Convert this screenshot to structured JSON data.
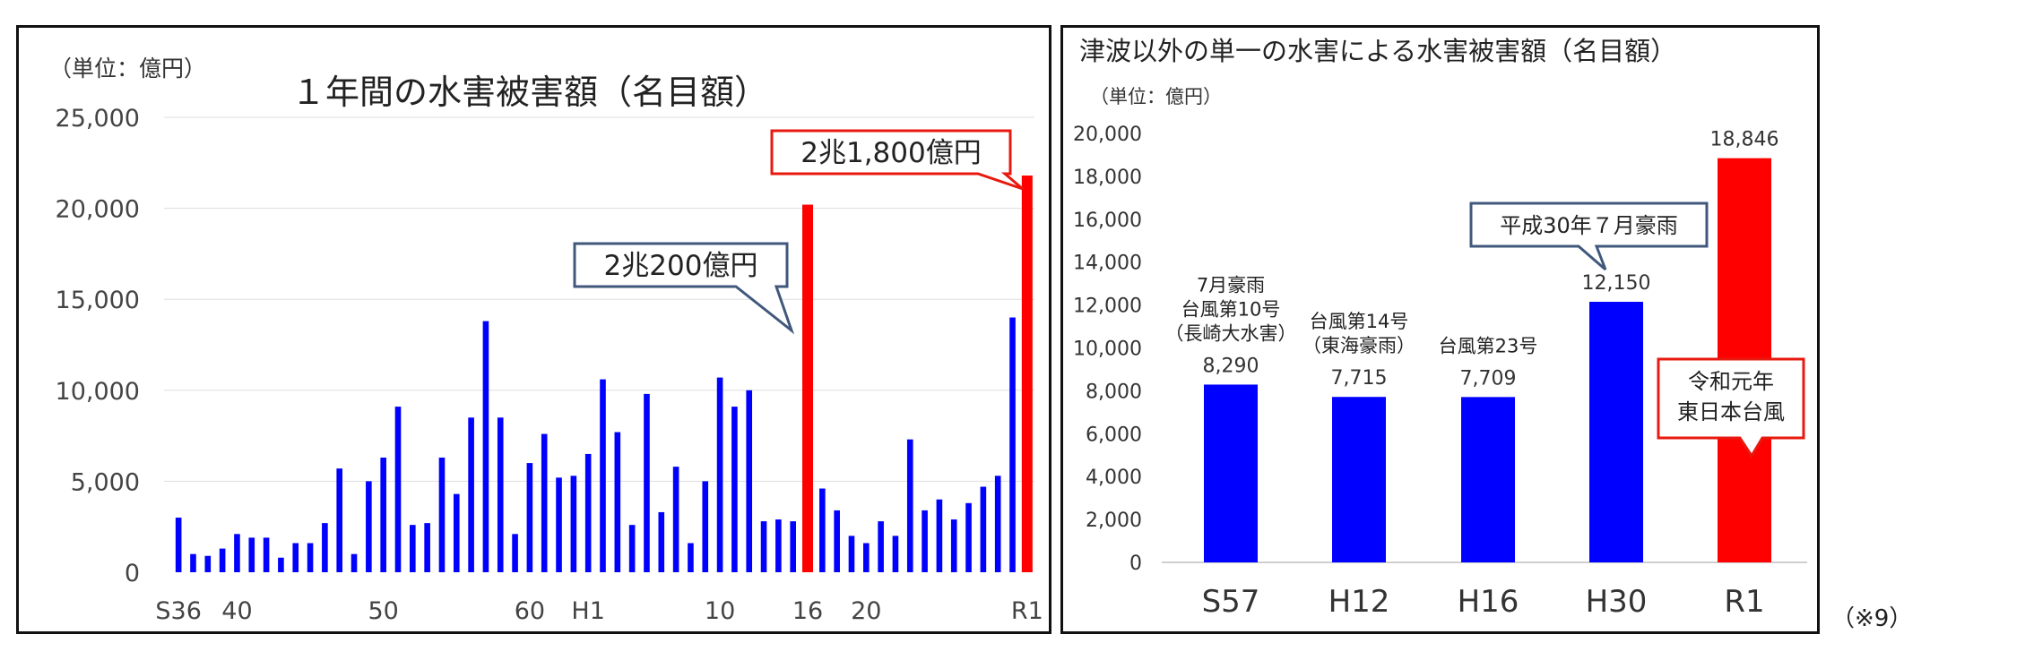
{
  "note": "（※9）",
  "chart_data": [
    {
      "type": "bar",
      "title": "１年間の水害被害額（名目額）",
      "unit_label": "（単位：億円）",
      "ylim": [
        0,
        25000
      ],
      "yticks": [
        "0",
        "5,000",
        "10,000",
        "15,000",
        "20,000",
        "25,000"
      ],
      "grid": true,
      "x_tick_labels": [
        "S36",
        "40",
        "50",
        "60",
        "H1",
        "10",
        "16",
        "20",
        "R1"
      ],
      "categories": [
        "S36",
        "S37",
        "S38",
        "S39",
        "S40",
        "S41",
        "S42",
        "S43",
        "S44",
        "S45",
        "S46",
        "S47",
        "S48",
        "S49",
        "S50",
        "S51",
        "S52",
        "S53",
        "S54",
        "S55",
        "S56",
        "S57",
        "S58",
        "S59",
        "S60",
        "S61",
        "S62",
        "S63",
        "H1",
        "H2",
        "H3",
        "H4",
        "H5",
        "H6",
        "H7",
        "H8",
        "H9",
        "H10",
        "H11",
        "H12",
        "H13",
        "H14",
        "H15",
        "H16",
        "H17",
        "H18",
        "H19",
        "H20",
        "H21",
        "H22",
        "H23",
        "H24",
        "H25",
        "H26",
        "H27",
        "H28",
        "H29",
        "H30",
        "R1"
      ],
      "values": [
        3000,
        1000,
        900,
        1300,
        2100,
        1900,
        1900,
        800,
        1600,
        1600,
        2700,
        5700,
        1000,
        5000,
        6300,
        9100,
        2600,
        2700,
        6300,
        4300,
        8500,
        13800,
        8500,
        2100,
        6000,
        7600,
        5200,
        5300,
        6500,
        10600,
        7700,
        2600,
        9800,
        3300,
        5800,
        1600,
        5000,
        10700,
        9100,
        10000,
        2800,
        2900,
        2800,
        20200,
        4600,
        3400,
        2000,
        1600,
        2800,
        2000,
        7300,
        3400,
        4000,
        2900,
        3800,
        4700,
        5300,
        14000,
        21800
      ],
      "highlight_categories": [
        "H16",
        "R1"
      ],
      "colors": {
        "normal": "#0000ff",
        "highlight": "#ff0000"
      },
      "callouts": [
        {
          "text": "2兆200億円",
          "target": "H16",
          "border": "#41587c"
        },
        {
          "text": "2兆1,800億円",
          "target": "R1",
          "border": "#e8190f"
        }
      ]
    },
    {
      "type": "bar",
      "title": "津波以外の単一の水害による水害被害額（名目額）",
      "unit_label": "（単位：億円）",
      "ylim": [
        0,
        20000
      ],
      "yticks": [
        "0",
        "2,000",
        "4,000",
        "6,000",
        "8,000",
        "10,000",
        "12,000",
        "14,000",
        "16,000",
        "18,000",
        "20,000"
      ],
      "grid": false,
      "categories": [
        "S57",
        "H12",
        "H16",
        "H30",
        "R1"
      ],
      "values": [
        8290,
        7715,
        7709,
        12150,
        18846
      ],
      "value_labels": [
        "8,290",
        "7,715",
        "7,709",
        "12,150",
        "18,846"
      ],
      "event_labels": [
        [
          "7月豪雨",
          "台風第10号",
          "（長崎大水害）"
        ],
        [
          "台風第14号",
          "（東海豪雨）"
        ],
        [
          "台風第23号"
        ],
        [],
        []
      ],
      "colors": {
        "normal": "#0000ff",
        "highlight": "#ff0000"
      },
      "highlight_categories": [
        "R1"
      ],
      "callouts": [
        {
          "text": [
            "平成30年７月豪雨"
          ],
          "target": "H30",
          "border": "#41587c"
        },
        {
          "text": [
            "令和元年",
            "東日本台風"
          ],
          "target": "R1",
          "border": "#e8190f"
        }
      ]
    }
  ]
}
